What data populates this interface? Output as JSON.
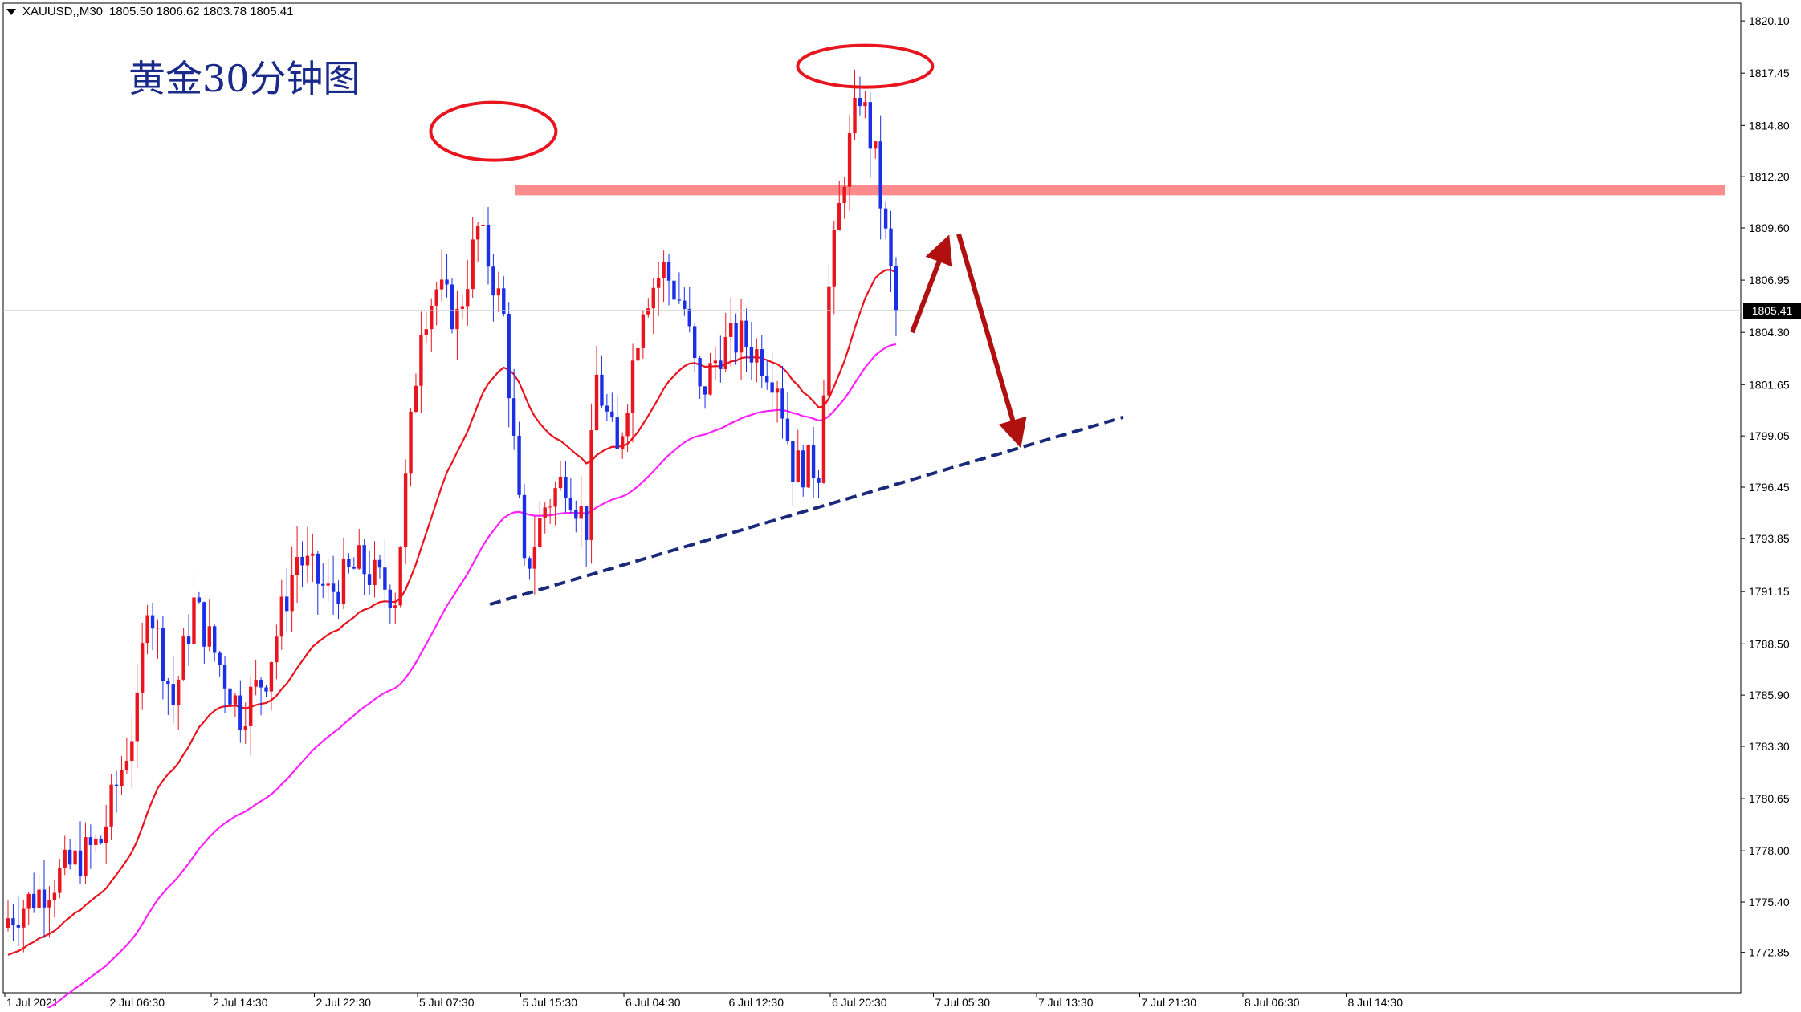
{
  "header": {
    "symbol": "XAUUSD,,M30",
    "ohlc": "1805.50 1806.62 1803.78 1805.41"
  },
  "annotation_title": "黄金30分钟图",
  "current_price_label": "1805.41",
  "colors": {
    "bull": "#e8141e",
    "bear": "#1a2fe6",
    "ma_fast": "#e8141e",
    "ma_slow": "#ff22ff",
    "resistance": "#ff7f7f",
    "trendline": "#1a2a7a",
    "arrow": "#b01010",
    "circle": "#e8141e"
  },
  "chart_data": {
    "type": "candlestick",
    "ylim": [
      1770.8,
      1821.0
    ],
    "y_ticks": [
      "1820.10",
      "1817.45",
      "1814.80",
      "1812.20",
      "1809.60",
      "1806.95",
      "1804.30",
      "1801.65",
      "1799.05",
      "1796.45",
      "1793.85",
      "1791.15",
      "1788.50",
      "1785.90",
      "1783.30",
      "1780.65",
      "1778.00",
      "1775.40",
      "1772.85"
    ],
    "x_ticks": [
      "1 Jul 2021",
      "2 Jul 06:30",
      "2 Jul 14:30",
      "2 Jul 22:30",
      "5 Jul 07:30",
      "5 Jul 15:30",
      "6 Jul 04:30",
      "6 Jul 12:30",
      "6 Jul 20:30",
      "7 Jul 05:30",
      "7 Jul 13:30",
      "7 Jul 21:30",
      "8 Jul 06:30",
      "8 Jul 14:30"
    ],
    "key_points": [
      {
        "bar": 0,
        "price": 1774.6
      },
      {
        "bar": 18,
        "price": 1778.5
      },
      {
        "bar": 25,
        "price": 1785.0
      },
      {
        "bar": 27,
        "price": 1791.0
      },
      {
        "bar": 32,
        "price": 1785.5
      },
      {
        "bar": 36,
        "price": 1790.5
      },
      {
        "bar": 45,
        "price": 1785.0
      },
      {
        "bar": 50,
        "price": 1787.0
      },
      {
        "bar": 56,
        "price": 1793.0
      },
      {
        "bar": 62,
        "price": 1791.0
      },
      {
        "bar": 68,
        "price": 1792.5
      },
      {
        "bar": 75,
        "price": 1791.0
      },
      {
        "bar": 80,
        "price": 1805.0
      },
      {
        "bar": 83,
        "price": 1806.5
      },
      {
        "bar": 87,
        "price": 1805.0
      },
      {
        "bar": 91,
        "price": 1809.5
      },
      {
        "bar": 93,
        "price": 1808.0
      },
      {
        "bar": 96,
        "price": 1805.0
      },
      {
        "bar": 100,
        "price": 1792.0
      },
      {
        "bar": 104,
        "price": 1795.5
      },
      {
        "bar": 108,
        "price": 1797.0
      },
      {
        "bar": 112,
        "price": 1794.5
      },
      {
        "bar": 114,
        "price": 1802.0
      },
      {
        "bar": 118,
        "price": 1798.0
      },
      {
        "bar": 123,
        "price": 1806.0
      },
      {
        "bar": 127,
        "price": 1807.5
      },
      {
        "bar": 131,
        "price": 1805.5
      },
      {
        "bar": 134,
        "price": 1801.0
      },
      {
        "bar": 138,
        "price": 1803.5
      },
      {
        "bar": 142,
        "price": 1804.0
      },
      {
        "bar": 146,
        "price": 1803.0
      },
      {
        "bar": 149,
        "price": 1802.0
      },
      {
        "bar": 152,
        "price": 1797.5
      },
      {
        "bar": 157,
        "price": 1797.5
      },
      {
        "bar": 159,
        "price": 1806.5
      },
      {
        "bar": 162,
        "price": 1812.5
      },
      {
        "bar": 165,
        "price": 1816.5
      },
      {
        "bar": 168,
        "price": 1813.0
      },
      {
        "bar": 170,
        "price": 1809.0
      },
      {
        "bar": 172,
        "price": 1805.4
      }
    ],
    "resistance_level": 1811.5,
    "trendline": {
      "from": {
        "bar": 98,
        "price": 1790.5
      },
      "to": {
        "bar": 202,
        "price": 1800.0
      }
    },
    "circled_highs": [
      {
        "bar": 94,
        "price": 1814.5
      },
      {
        "bar": 166,
        "price": 1817.8
      }
    ]
  }
}
